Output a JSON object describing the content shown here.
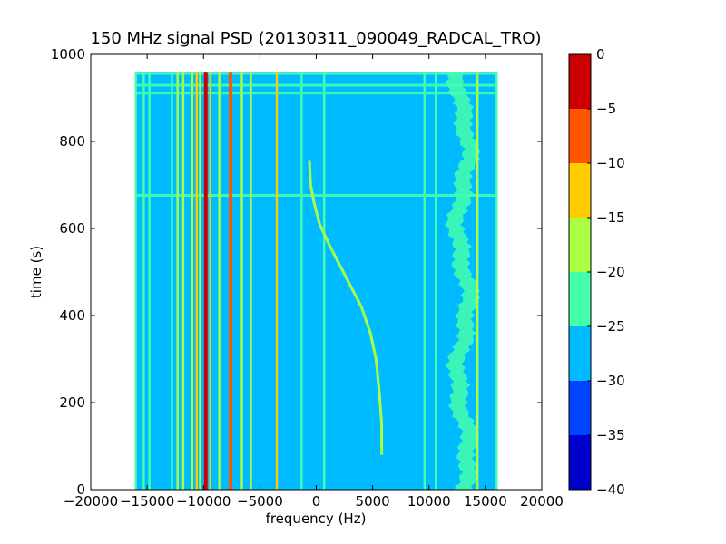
{
  "chart_data": {
    "type": "heatmap",
    "title": "150 MHz signal PSD (20130311_090049_RADCAL_TRO)",
    "xlabel": "frequency (Hz)",
    "ylabel": "time (s)",
    "xlim": [
      -20000,
      20000
    ],
    "ylim": [
      0,
      1000
    ],
    "xticks": [
      -20000,
      -15000,
      -10000,
      -5000,
      0,
      5000,
      10000,
      15000,
      20000
    ],
    "yticks": [
      0,
      200,
      400,
      600,
      800,
      1000
    ],
    "data_extent": {
      "x": [
        -16000,
        16000
      ],
      "y": [
        0,
        960
      ]
    },
    "background_level": -27,
    "colorbar": {
      "range": [
        -40,
        0
      ],
      "ticks": [
        0,
        -5,
        -10,
        -15,
        -20,
        -25,
        -30,
        -35,
        -40
      ],
      "levels": [
        {
          "from": -40,
          "to": -35,
          "color": "#0000cc"
        },
        {
          "from": -35,
          "to": -30,
          "color": "#0044ff"
        },
        {
          "from": -30,
          "to": -25,
          "color": "#00bbff"
        },
        {
          "from": -25,
          "to": -20,
          "color": "#44ffaa"
        },
        {
          "from": -20,
          "to": -15,
          "color": "#aaff44"
        },
        {
          "from": -15,
          "to": -10,
          "color": "#ffcc00"
        },
        {
          "from": -10,
          "to": -5,
          "color": "#ff5500"
        },
        {
          "from": -5,
          "to": 0,
          "color": "#cc0000"
        }
      ]
    },
    "vertical_lines": [
      {
        "freq": -16000,
        "level": -22
      },
      {
        "freq": -15300,
        "level": -22
      },
      {
        "freq": -14800,
        "level": -22
      },
      {
        "freq": -12800,
        "level": -22
      },
      {
        "freq": -12300,
        "level": -18
      },
      {
        "freq": -11800,
        "level": -18
      },
      {
        "freq": -11000,
        "level": -18
      },
      {
        "freq": -10600,
        "level": -12
      },
      {
        "freq": -10300,
        "level": -18
      },
      {
        "freq": -9800,
        "level": -2
      },
      {
        "freq": -9400,
        "level": -12
      },
      {
        "freq": -8600,
        "level": -18
      },
      {
        "freq": -7600,
        "level": -8
      },
      {
        "freq": -6600,
        "level": -18
      },
      {
        "freq": -5800,
        "level": -18
      },
      {
        "freq": -3500,
        "level": -14
      },
      {
        "freq": -1300,
        "level": -22
      },
      {
        "freq": 700,
        "level": -20
      },
      {
        "freq": 9600,
        "level": -22
      },
      {
        "freq": 10600,
        "level": -22
      },
      {
        "freq": 14300,
        "level": -18
      },
      {
        "freq": 16000,
        "level": -22
      }
    ],
    "horizontal_bands": [
      {
        "time": 955,
        "level": -20
      },
      {
        "time": 928,
        "level": -20
      },
      {
        "time": 910,
        "level": -20
      },
      {
        "time": 675,
        "level": -22
      }
    ],
    "drift_signal": {
      "level": -15,
      "points": [
        [
          -600,
          755
        ],
        [
          -500,
          700
        ],
        [
          -200,
          660
        ],
        [
          300,
          610
        ],
        [
          1200,
          560
        ],
        [
          2200,
          510
        ],
        [
          3200,
          460
        ],
        [
          4000,
          420
        ],
        [
          4800,
          360
        ],
        [
          5300,
          300
        ],
        [
          5600,
          220
        ],
        [
          5800,
          150
        ],
        [
          5800,
          80
        ]
      ]
    },
    "noisy_band": {
      "center": 13000,
      "half_width": 700,
      "level": -22
    }
  }
}
